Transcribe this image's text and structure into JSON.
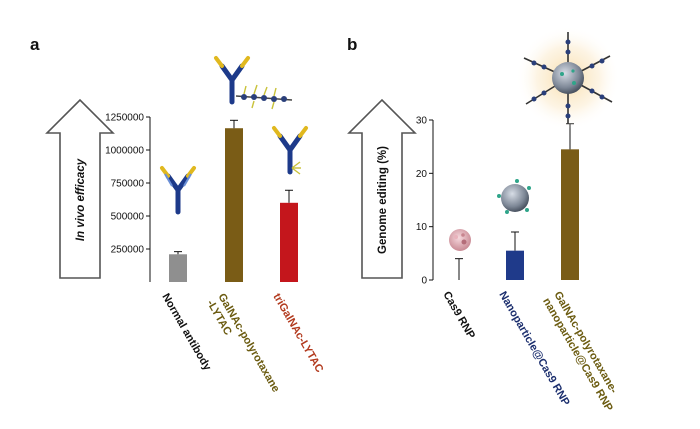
{
  "chart_data": [
    {
      "type": "bar",
      "panel": "a",
      "title": "",
      "xlabel": "",
      "ylabel": "In vivo efficacy",
      "ylim": [
        0,
        1250000
      ],
      "yticks": [
        250000,
        500000,
        750000,
        1000000,
        1250000
      ],
      "ytick_labels": [
        "250000",
        "500000",
        "750000",
        "1000000",
        "1250000"
      ],
      "categories": [
        "Normal antibody",
        "GalNAc-polyrotaxane\n-LYTAC",
        "triGalNAc-LYTAC"
      ],
      "values": [
        210000,
        1165000,
        600000
      ],
      "errors": [
        20000,
        60000,
        95000
      ],
      "colors": [
        "#8f8f8f",
        "#7a5c16",
        "#c4161c"
      ],
      "label_colors": [
        "#111111",
        "#6b5b10",
        "#b23a1e"
      ],
      "grid": false,
      "legend": "none"
    },
    {
      "type": "bar",
      "panel": "b",
      "title": "",
      "xlabel": "",
      "ylabel": "Genome editing (%)",
      "ylim": [
        0,
        30
      ],
      "yticks": [
        0,
        10,
        20,
        30
      ],
      "ytick_labels": [
        "0",
        "10",
        "20",
        "30"
      ],
      "categories": [
        "Cas9 RNP",
        "Nanoparticle@Cas9 RNP",
        "GalNAc-polyrotaxane-\nnanoparticle@Cas9 RNP"
      ],
      "values": [
        0.0,
        5.5,
        24.5
      ],
      "errors": [
        4.0,
        3.5,
        4.8
      ],
      "colors": [
        "#1f3a8a",
        "#1f3a8a",
        "#7a5c16"
      ],
      "label_colors": [
        "#111111",
        "#1c2f6e",
        "#6b5b10"
      ],
      "grid": false,
      "legend": "none"
    }
  ],
  "panels": {
    "a": "a",
    "b": "b"
  }
}
